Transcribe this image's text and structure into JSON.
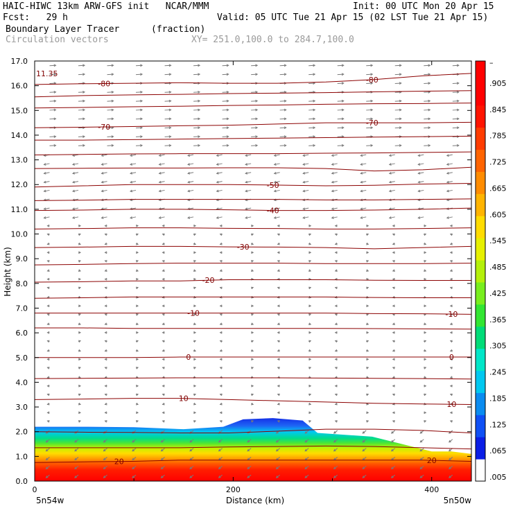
{
  "header": {
    "title_left": "HAIC-HIWC 13km ARW-GFS init   NCAR/MMM",
    "init": "Init: 00 UTC Mon 20 Apr 15",
    "fcst": "Fcst:   29 h",
    "valid": "Valid: 05 UTC Tue 21 Apr 15 (02 LST Tue 21 Apr 15)",
    "field": "Boundary Layer Tracer",
    "units": "(fraction)",
    "vectors": "Circulation vectors",
    "xy": "XY= 251.0,100.0 to 284.7,100.0"
  },
  "chart_data": {
    "type": "heatmap",
    "xlabel": "Distance (km)",
    "ylabel": "Height (km)",
    "xlim": [
      0,
      440
    ],
    "ylim": [
      0,
      17
    ],
    "y_ticks": [
      "0.0",
      "1.0",
      "2.0",
      "3.0",
      "4.0",
      "5.0",
      "6.0",
      "7.0",
      "8.0",
      "9.0",
      "10.0",
      "11.0",
      "12.0",
      "13.0",
      "14.0",
      "15.0",
      "16.0",
      "17.0"
    ],
    "x_ticks": [
      {
        "value": 0,
        "label": "0"
      },
      {
        "value": 200,
        "label": "200"
      },
      {
        "value": 400,
        "label": "400"
      }
    ],
    "x_endpoints": {
      "left": "5n54w",
      "right": "5n50w"
    },
    "corner_label": "11.35",
    "colorbar": {
      "labels": [
        ".005",
        ".065",
        ".125",
        ".185",
        ".245",
        ".305",
        ".365",
        ".425",
        ".485",
        ".545",
        ".605",
        ".665",
        ".725",
        ".785",
        ".845",
        ".905",
        "–"
      ],
      "colors": [
        "#ffffff",
        "#0a1ee6",
        "#0f50f5",
        "#0a8cf0",
        "#00c8f0",
        "#00e6c8",
        "#00dc78",
        "#32e632",
        "#78ee1e",
        "#b4f00a",
        "#e6f000",
        "#ffdc00",
        "#ffb400",
        "#ff8c00",
        "#ff6400",
        "#ff3c00",
        "#ff1400",
        "#ff0000",
        "#ff0000"
      ]
    },
    "tracer_top": [
      {
        "x": 0,
        "y": 2.2
      },
      {
        "x": 50,
        "y": 2.2
      },
      {
        "x": 100,
        "y": 2.18
      },
      {
        "x": 150,
        "y": 2.1
      },
      {
        "x": 190,
        "y": 2.2
      },
      {
        "x": 210,
        "y": 2.5
      },
      {
        "x": 240,
        "y": 2.55
      },
      {
        "x": 270,
        "y": 2.45
      },
      {
        "x": 285,
        "y": 1.95
      },
      {
        "x": 340,
        "y": 1.8
      },
      {
        "x": 370,
        "y": 1.5
      },
      {
        "x": 400,
        "y": 1.2
      },
      {
        "x": 420,
        "y": 1.2
      },
      {
        "x": 440,
        "y": 1.1
      }
    ],
    "temperature_contours": [
      {
        "label": "-80",
        "y": [
          16.05,
          16.08,
          16.1,
          16.12,
          16.1,
          16.1,
          16.15,
          16.25,
          16.4,
          16.5
        ],
        "label_x": [
          70,
          340
        ]
      },
      {
        "label": "-70",
        "y": [
          14.3,
          14.32,
          14.35,
          14.38,
          14.4,
          14.45,
          14.5,
          14.5,
          14.5,
          14.52
        ],
        "label_x": [
          70,
          340
        ]
      },
      {
        "label": "-50",
        "y": [
          11.9,
          11.95,
          12.0,
          12.0,
          12.0,
          11.98,
          11.95,
          11.97,
          12.02,
          12.05
        ],
        "label_x": [
          240
        ]
      },
      {
        "label": "-40",
        "y": [
          10.95,
          10.97,
          11.0,
          11.0,
          10.98,
          10.95,
          10.95,
          10.97,
          11.0,
          11.05
        ],
        "label_x": [
          240
        ]
      },
      {
        "label": "-30",
        "y": [
          9.45,
          9.47,
          9.5,
          9.5,
          9.48,
          9.47,
          9.45,
          9.4,
          9.45,
          9.5
        ],
        "label_x": [
          210
        ]
      },
      {
        "label": "-20",
        "y": [
          8.05,
          8.07,
          8.1,
          8.1,
          8.15,
          8.15,
          8.15,
          8.13,
          8.12,
          8.12
        ],
        "label_x": [
          175
        ]
      },
      {
        "label": "-10",
        "y": [
          6.8,
          6.8,
          6.8,
          6.8,
          6.8,
          6.8,
          6.8,
          6.78,
          6.77,
          6.75
        ],
        "label_x": [
          160,
          420
        ]
      },
      {
        "label": "0",
        "y": [
          5.0,
          5.0,
          5.0,
          5.02,
          5.02,
          5.02,
          5.02,
          5.02,
          5.02,
          5.02
        ],
        "label_x": [
          155,
          420
        ]
      },
      {
        "label": "10",
        "y": [
          3.3,
          3.32,
          3.35,
          3.35,
          3.3,
          3.25,
          3.2,
          3.15,
          3.12,
          3.1
        ],
        "label_x": [
          150,
          420
        ]
      },
      {
        "label": "20",
        "y": [
          0.75,
          0.78,
          0.8,
          0.85,
          0.85,
          0.85,
          0.85,
          0.85,
          0.85,
          0.8
        ],
        "label_x": [
          85,
          400
        ]
      }
    ],
    "extra_contours": [
      [
        12.65,
        12.66,
        12.67,
        12.67,
        12.68,
        12.68,
        12.65,
        12.55,
        12.6,
        12.7
      ],
      [
        13.2,
        13.22,
        13.24,
        13.25,
        13.25,
        13.25,
        13.27,
        13.28,
        13.3,
        13.32
      ],
      [
        13.8,
        13.8,
        13.82,
        13.84,
        13.86,
        13.88,
        13.9,
        13.92,
        13.94,
        13.96
      ],
      [
        15.1,
        15.12,
        15.15,
        15.17,
        15.2,
        15.22,
        15.25,
        15.27,
        15.28,
        15.3
      ],
      [
        15.55,
        15.6,
        15.63,
        15.65,
        15.68,
        15.7,
        15.72,
        15.75,
        15.78,
        15.8
      ],
      [
        11.35,
        11.37,
        11.4,
        11.4,
        11.4,
        11.4,
        11.38,
        11.38,
        11.4,
        11.42
      ],
      [
        10.2,
        10.22,
        10.25,
        10.25,
        10.23,
        10.22,
        10.2,
        10.2,
        10.22,
        10.25
      ],
      [
        8.75,
        8.77,
        8.8,
        8.82,
        8.82,
        8.82,
        8.8,
        8.8,
        8.8,
        8.82
      ],
      [
        7.4,
        7.42,
        7.45,
        7.45,
        7.45,
        7.45,
        7.45,
        7.43,
        7.42,
        7.42
      ],
      [
        6.2,
        6.2,
        6.18,
        6.18,
        6.18,
        6.18,
        6.18,
        6.17,
        6.16,
        6.15
      ],
      [
        4.15,
        4.16,
        4.17,
        4.18,
        4.18,
        4.18,
        4.17,
        4.16,
        4.15,
        4.13
      ],
      [
        2.0,
        1.98,
        1.97,
        1.95,
        1.95,
        2.02,
        2.1,
        2.1,
        2.05,
        1.95
      ],
      [
        1.35,
        1.35,
        1.35,
        1.35,
        1.38,
        1.4,
        1.42,
        1.4,
        1.35,
        1.3
      ]
    ]
  }
}
